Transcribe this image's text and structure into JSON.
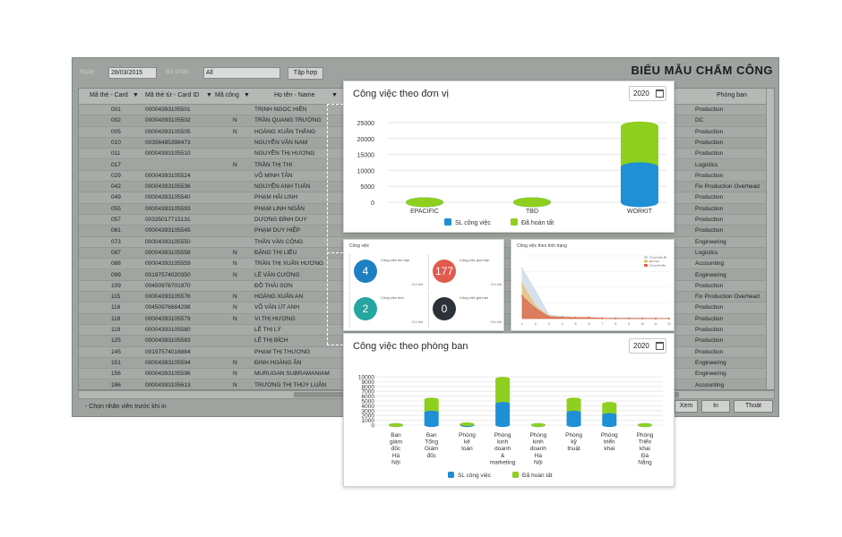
{
  "app": {
    "title": "BIỂU MẪU CHẤM CÔNG",
    "filters": {
      "date_label": "Ngày",
      "date_value": "28/03/2015",
      "unit_label": "Bộ phận",
      "unit_value": "All",
      "apply_button": "Tập hợp"
    },
    "columns": [
      "Mã thẻ - Card",
      "Mã thẻ từ - Card ID",
      "Mã công",
      "Họ tên - Name",
      "Phòng ban"
    ],
    "rows": [
      {
        "card": "001",
        "card_id": "00004393105501",
        "code": "",
        "name": "TRỊNH NGỌC HIỀN",
        "dept": "Production"
      },
      {
        "card": "002",
        "card_id": "00004393105502",
        "code": "N",
        "name": "TRẦN QUANG TRƯỜNG",
        "dept": "DC"
      },
      {
        "card": "005",
        "card_id": "00004393105505",
        "code": "N",
        "name": "HOÀNG XUÂN THẮNG",
        "dept": "Production"
      },
      {
        "card": "010",
        "card_id": "00356485398473",
        "code": "",
        "name": "NGUYỄN VĂN NAM",
        "dept": "Production"
      },
      {
        "card": "011",
        "card_id": "00004393105510",
        "code": "",
        "name": "NGUYỄN THỊ HƯƠNG",
        "dept": "Production"
      },
      {
        "card": "017",
        "card_id": "",
        "code": "N",
        "name": "TRẦN THỊ THI",
        "dept": "Logistics"
      },
      {
        "card": "029",
        "card_id": "00004393105524",
        "code": "",
        "name": "VÕ MINH TÂN",
        "dept": "Production"
      },
      {
        "card": "042",
        "card_id": "00004393105536",
        "code": "",
        "name": "NGUYỄN ANH TUẤN",
        "dept": "Fix Production Overhead"
      },
      {
        "card": "049",
        "card_id": "00004393105540",
        "code": "",
        "name": "PHẠM HẢI LINH",
        "dept": "Production"
      },
      {
        "card": "055",
        "card_id": "00004393105593",
        "code": "",
        "name": "PHẠM LINH NGÂN",
        "dept": "Production"
      },
      {
        "card": "057",
        "card_id": "00335017715131",
        "code": "",
        "name": "DƯƠNG ĐÌNH DUY",
        "dept": "Production"
      },
      {
        "card": "061",
        "card_id": "00004393105545",
        "code": "",
        "name": "PHẠM DUY HIỆP",
        "dept": "Production"
      },
      {
        "card": "073",
        "card_id": "00004393105550",
        "code": "",
        "name": "THÂN VĂN CÔNG",
        "dept": "Engineering"
      },
      {
        "card": "087",
        "card_id": "00004393105558",
        "code": "N",
        "name": "ĐẶNG THỊ LIỄU",
        "dept": "Logistics"
      },
      {
        "card": "088",
        "card_id": "00004393105559",
        "code": "N",
        "name": "TRẦN THỊ XUÂN HƯƠNG",
        "dept": "Accounting"
      },
      {
        "card": "099",
        "card_id": "00197574020350",
        "code": "N",
        "name": "LÊ VĂN CƯỜNG",
        "dept": "Engineering"
      },
      {
        "card": "109",
        "card_id": "00450976701970",
        "code": "",
        "name": "ĐỖ THÁI SƠN",
        "dept": "Production"
      },
      {
        "card": "115",
        "card_id": "00004393105576",
        "code": "N",
        "name": "HOÀNG XUÂN AN",
        "dept": "Fix Production Overhead"
      },
      {
        "card": "116",
        "card_id": "00450976684298",
        "code": "N",
        "name": "VÕ VĂN ÚT ANH",
        "dept": "Production"
      },
      {
        "card": "118",
        "card_id": "00004393105579",
        "code": "N",
        "name": "VI THỊ HƯƠNG",
        "dept": "Production"
      },
      {
        "card": "119",
        "card_id": "00004393105580",
        "code": "",
        "name": "LÊ THỊ LÝ",
        "dept": "Production"
      },
      {
        "card": "125",
        "card_id": "00004393105583",
        "code": "",
        "name": "LÊ THỊ BÍCH",
        "dept": "Production"
      },
      {
        "card": "145",
        "card_id": "00197574016884",
        "code": "",
        "name": "PHẠM THỊ THƯƠNG",
        "dept": "Production"
      },
      {
        "card": "151",
        "card_id": "00004393105594",
        "code": "N",
        "name": "ĐINH HOÀNG ÂN",
        "dept": "Engineering"
      },
      {
        "card": "156",
        "card_id": "00004393105596",
        "code": "N",
        "name": "MURUGAN SUBRAMANIAM",
        "dept": "Engineering"
      },
      {
        "card": "186",
        "card_id": "00004393105613",
        "code": "N",
        "name": "TRƯƠNG THỊ THÚY LUÂN",
        "dept": "Accounting"
      }
    ],
    "status_note": "- Chọn nhân viên trước khi in",
    "buttons": {
      "preview": "Xem",
      "print": "In",
      "exit": "Thoát"
    }
  },
  "unit_panel": {
    "title": "Công việc theo đơn vị",
    "year": "2020",
    "chart_data": {
      "type": "bar",
      "categories": [
        "EPACIFIC",
        "TBD",
        "WORKIT"
      ],
      "series": [
        {
          "name": "SL công việc",
          "values": [
            0,
            0,
            11000
          ],
          "color": "#1f8fd6"
        },
        {
          "name": "Đã hoàn tất",
          "values": [
            0,
            0,
            12800
          ],
          "color": "#8fcf1f"
        }
      ],
      "y_ticks": [
        "25000",
        "20000",
        "15000",
        "10000",
        "5000",
        "0"
      ],
      "ylim": [
        0,
        25000
      ],
      "legend": "bottom"
    }
  },
  "stats_panel": {
    "title": "Công việc",
    "cards": [
      {
        "value": "4",
        "label": "Công việc tồn hạn",
        "foot": "Chi tiết",
        "color": "#1f7fc4"
      },
      {
        "value": "177",
        "label": "Công việc quá hạn",
        "foot": "Chi tiết",
        "color": "#e05a4f"
      },
      {
        "value": "2",
        "label": "Công việc mới",
        "foot": "Chi tiết",
        "color": "#25a6a0"
      },
      {
        "value": "0",
        "label": "Công việc gia hạn",
        "foot": "Chi tiết",
        "color": "#2d3238"
      }
    ]
  },
  "status_panel": {
    "title": "Công việc theo tình trạng",
    "chart_data": {
      "type": "area",
      "x": [
        "1",
        "2",
        "3",
        "4",
        "5",
        "6",
        "7",
        "8",
        "9",
        "10",
        "11",
        "12"
      ],
      "series": [
        {
          "name": "Chưa hoàn tất",
          "values": [
            40,
            22,
            3,
            2,
            1,
            1,
            0.5,
            0.5,
            0.3,
            0.3,
            0.2,
            0.2
          ],
          "color": "#c9d6e6"
        },
        {
          "name": "Đã hoàn",
          "values": [
            28,
            10,
            2,
            1,
            1,
            1,
            0.3,
            0.2,
            0.2,
            0.2,
            0.2,
            0.2
          ],
          "color": "#e8c070"
        },
        {
          "name": "Chưa bắt đầu",
          "values": [
            18,
            8,
            1.5,
            1,
            0.8,
            0.8,
            0.3,
            0.2,
            0.2,
            0.2,
            0.1,
            0.1
          ],
          "color": "#d8644f"
        }
      ],
      "ylim": [
        0,
        50
      ],
      "legend": "top-right"
    }
  },
  "dept_panel": {
    "title": "Công việc theo phòng ban",
    "year": "2020",
    "chart_data": {
      "type": "bar",
      "categories": [
        "Ban giám đốc Hà Nội",
        "Ban Tổng Giám đốc",
        "Phòng kế toán",
        "Phòng kinh doanh & marketing",
        "Phòng kinh doanh Hà Nội",
        "Phòng kỹ thuật",
        "Phòng triển khai",
        "Phòng Triển khai Đà Nẵng"
      ],
      "category_lines": [
        [
          "Ban",
          "giám",
          "đốc",
          "Hà",
          "Nội"
        ],
        [
          "Ban",
          "Tổng",
          "Giám",
          "đốc"
        ],
        [
          "Phòng",
          "kế",
          "toán"
        ],
        [
          "Phòng",
          "kinh",
          "doanh",
          "&",
          "marketing"
        ],
        [
          "Phòng",
          "kinh",
          "doanh",
          "Hà",
          "Nội"
        ],
        [
          "Phòng",
          "kỹ",
          "thuật"
        ],
        [
          "Phòng",
          "triển",
          "khai"
        ],
        [
          "Phòng",
          "Triển",
          "khai",
          "Đà",
          "Nẵng"
        ]
      ],
      "series": [
        {
          "name": "SL công việc",
          "values": [
            0,
            2600,
            100,
            4400,
            0,
            2600,
            2100,
            0
          ],
          "color": "#1f8fd6"
        },
        {
          "name": "Đã hoàn tất",
          "values": [
            0,
            2700,
            100,
            5200,
            0,
            2700,
            2300,
            0
          ],
          "color": "#8fcf1f"
        }
      ],
      "y_ticks": [
        "10000",
        "9000",
        "8000",
        "7000",
        "6000",
        "5000",
        "4000",
        "3000",
        "2000",
        "1000",
        "0"
      ],
      "ylim": [
        0,
        10000
      ],
      "legend": "bottom"
    }
  }
}
